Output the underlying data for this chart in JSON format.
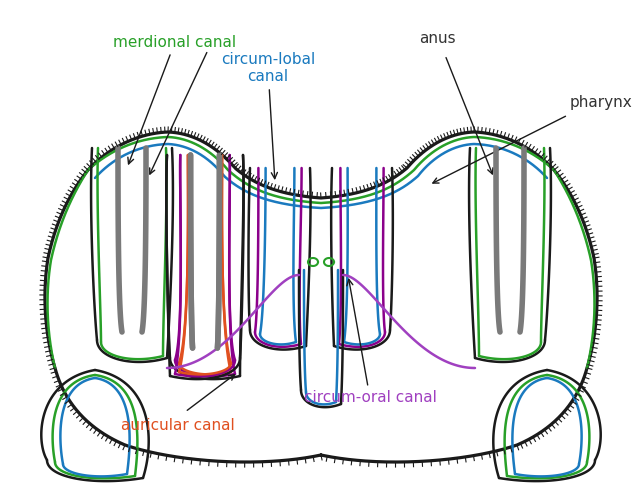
{
  "background_color": "#ffffff",
  "labels": {
    "merdional_canal": "merdional canal",
    "circum_lobal_canal": "circum-lobal\ncanal",
    "anus": "anus",
    "pharynx": "pharynx",
    "circum_oral_canal": "circum-oral canal",
    "auricular_canal": "auricular canal"
  },
  "colors": {
    "outline": "#1a1a1a",
    "meridional": "#28a028",
    "circum_lobal": "#1a7abf",
    "pharynx_canal": "#8b008b",
    "auricular": "#e05020",
    "gray": "#7a7a7a",
    "circum_oral": "#a040c0",
    "label_meridional": "#28a028",
    "label_circum_lobal": "#1a7abf",
    "label_anus": "#333333",
    "label_pharynx": "#333333",
    "label_circum_oral": "#a040c0",
    "label_auricular": "#e05020"
  }
}
